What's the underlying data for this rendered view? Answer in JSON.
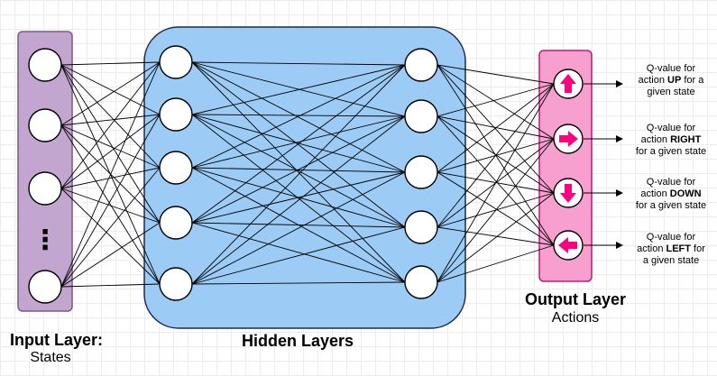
{
  "input_layer": {
    "title": "Input Layer:",
    "subtitle": "States",
    "ellipsis": "⋮"
  },
  "hidden_layers": {
    "title": "Hidden Layers"
  },
  "output_layer": {
    "title": "Output Layer",
    "subtitle": "Actions"
  },
  "q_values": [
    {
      "line1": "Q-value for",
      "prefix": "action ",
      "action": "UP",
      "suffix": " for a",
      "line3": "given state",
      "arrow": "up-arrow-icon"
    },
    {
      "line1": "Q-value for",
      "prefix": "action ",
      "action": "RIGHT",
      "suffix": "",
      "line3": "for a given state",
      "arrow": "right-arrow-icon"
    },
    {
      "line1": "Q-value for",
      "prefix": "action ",
      "action": "DOWN",
      "suffix": "",
      "line3": "for a given state",
      "arrow": "down-arrow-icon"
    },
    {
      "line1": "Q-value for",
      "prefix": "action ",
      "action": "LEFT",
      "suffix": " for",
      "line3": "a given state",
      "arrow": "left-arrow-icon"
    }
  ],
  "colors": {
    "input_fill": "#c3a6d0",
    "input_stroke": "#7a5a8a",
    "hidden_fill": "#9ccbf5",
    "hidden_stroke": "#1f2a44",
    "output_fill": "#f79fcf",
    "output_stroke": "#c0187a",
    "arrow": "#ff007f",
    "node_fill": "#ffffff",
    "edge": "#000000"
  }
}
